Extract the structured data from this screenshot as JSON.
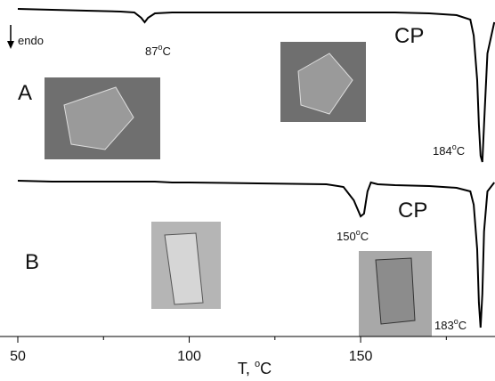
{
  "chart_data": {
    "type": "line",
    "x": [
      50,
      60,
      70,
      80,
      84,
      86,
      87,
      88,
      90,
      95,
      100,
      120,
      140,
      145,
      148,
      150,
      151,
      152,
      153,
      155,
      160,
      170,
      178,
      182,
      183,
      184,
      184.5,
      185,
      185.5,
      186,
      187,
      189
    ],
    "series": [
      {
        "name": "A",
        "color": "#000000",
        "values": [
          370,
          369,
          368,
          367,
          366,
          360,
          355,
          360,
          365,
          366,
          366,
          366,
          366,
          366,
          366,
          366,
          366,
          366,
          366,
          366,
          366,
          365,
          363,
          358,
          340,
          290,
          240,
          205,
          198,
          240,
          320,
          355
        ]
      },
      {
        "name": "B",
        "color": "#000000",
        "values": [
          177,
          176,
          176,
          176,
          176,
          176,
          176,
          176,
          176,
          175,
          175,
          174,
          173,
          170,
          155,
          137,
          140,
          165,
          175,
          173,
          172,
          171,
          169,
          165,
          150,
          100,
          40,
          12,
          50,
          120,
          165,
          175
        ]
      }
    ],
    "xlim": [
      50,
      189.2
    ],
    "ylim": [
      0,
      380
    ],
    "xticks": [
      50,
      100,
      150
    ],
    "xminorticks": [
      75,
      125,
      175
    ],
    "xlabel": {
      "text": "T, ",
      "sup": "o",
      "unit": "C"
    },
    "endo": "endo",
    "annotations": [
      {
        "text": "87",
        "sup": "o",
        "unit": "C"
      },
      {
        "text": "184",
        "sup": "o",
        "unit": "C"
      },
      {
        "text": "150",
        "sup": "o",
        "unit": "C"
      },
      {
        "text": "183",
        "sup": "o",
        "unit": "C"
      },
      {
        "text": "CP"
      },
      {
        "text": "CP"
      }
    ]
  }
}
